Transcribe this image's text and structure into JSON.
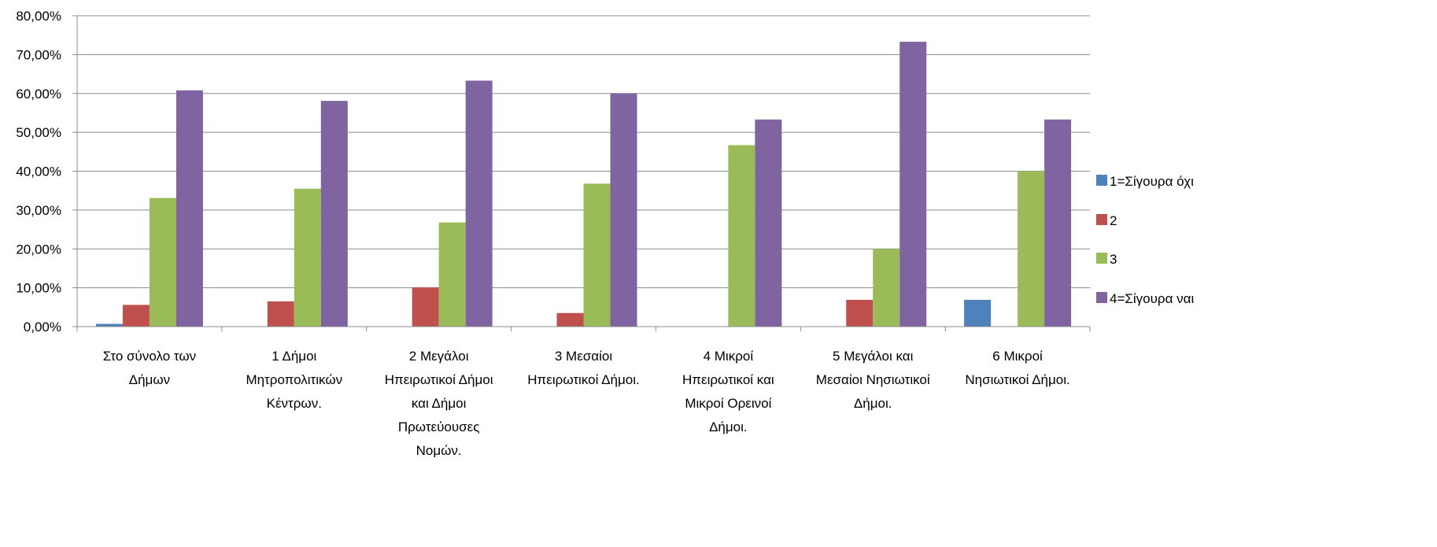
{
  "chart_data": {
    "type": "bar",
    "title": "",
    "xlabel": "",
    "ylabel": "",
    "ylim": [
      0,
      80
    ],
    "y_step": 10,
    "y_tick_labels": [
      "0,00%",
      "10,00%",
      "20,00%",
      "30,00%",
      "40,00%",
      "50,00%",
      "60,00%",
      "70,00%",
      "80,00%"
    ],
    "grid": true,
    "legend_position": "right",
    "categories": [
      [
        "Στο σύνολο των",
        "Δήμων"
      ],
      [
        "1 Δήμοι",
        "Μητροπολιτικών",
        "Κέντρων."
      ],
      [
        "2 Μεγάλοι",
        "Ηπειρωτικοί Δήμοι",
        "και Δήμοι",
        "Πρωτεύουσες",
        "Νομών."
      ],
      [
        "3 Μεσαίοι",
        "Ηπειρωτικοί Δήμοι."
      ],
      [
        "4 Μικροί",
        "Ηπειρωτικοί και",
        "Μικροί Ορεινοί",
        "Δήμοι."
      ],
      [
        "5 Μεγάλοι και",
        "Μεσαίοι Νησιωτικοί",
        "Δήμοι."
      ],
      [
        "6 Μικροί",
        "Νησιωτικοί Δήμοι."
      ]
    ],
    "series": [
      {
        "name": "1=Σίγουρα όχι",
        "color": "#4F81BD",
        "values": [
          0.7,
          0,
          0,
          0,
          0,
          0,
          6.9
        ]
      },
      {
        "name": "2",
        "color": "#C0504D",
        "values": [
          5.6,
          6.5,
          10.1,
          3.5,
          0,
          6.9,
          0
        ]
      },
      {
        "name": "3",
        "color": "#9BBB59",
        "values": [
          33.1,
          35.5,
          26.8,
          36.8,
          46.7,
          20.0,
          40.0
        ]
      },
      {
        "name": "4=Σίγουρα ναι",
        "color": "#8064A2",
        "values": [
          60.8,
          58.1,
          63.3,
          60.0,
          53.3,
          73.3,
          53.3
        ]
      }
    ]
  }
}
